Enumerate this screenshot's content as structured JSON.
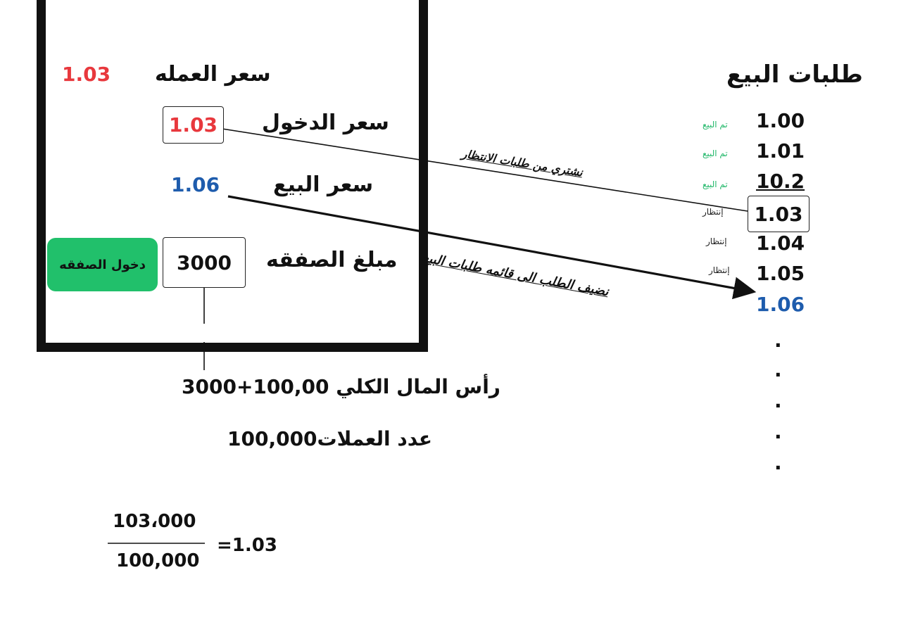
{
  "trade_panel": {
    "currency_price_label": "سعر العمله",
    "currency_price_value": "1.03",
    "entry_price_label": "سعر الدخول",
    "entry_price_value": "1.03",
    "sell_price_label": "سعر البيع",
    "sell_price_value": "1.06",
    "deal_amount_label": "مبلغ الصفقه",
    "deal_amount_value": "3000",
    "enter_deal_button": "دخول الصفقه"
  },
  "sell_orders": {
    "title": "طلبات البيع",
    "rows": [
      {
        "price": "1.00",
        "status": "تم البيع"
      },
      {
        "price": "1.01",
        "status": "تم البيع"
      },
      {
        "price": "10.2",
        "status": "تم البيع"
      },
      {
        "price": "1.03",
        "status": "إنتظار"
      },
      {
        "price": "1.04",
        "status": "إنتظار"
      },
      {
        "price": "1.05",
        "status": "إنتظار"
      },
      {
        "price": "1.06",
        "status": ""
      }
    ],
    "ellipsis": [
      ".",
      ".",
      ".",
      ".",
      "."
    ]
  },
  "annotations": {
    "buy_from_waiting": "نشتري من طلبات الانتظار",
    "add_to_sell_list": "نضيف الطلب الى قائمه طلبات البيع"
  },
  "summary": {
    "total_capital": "رأس المال الكلي 100,00+3000",
    "coin_count": "عدد العملات100,000",
    "fraction_numerator": "103،000",
    "fraction_denominator": "100,000",
    "fraction_result": "=1.03"
  },
  "colors": {
    "red": "#e8383d",
    "blue": "#1e5cad",
    "green_status": "#22b86a",
    "button_green": "#21c06b"
  }
}
